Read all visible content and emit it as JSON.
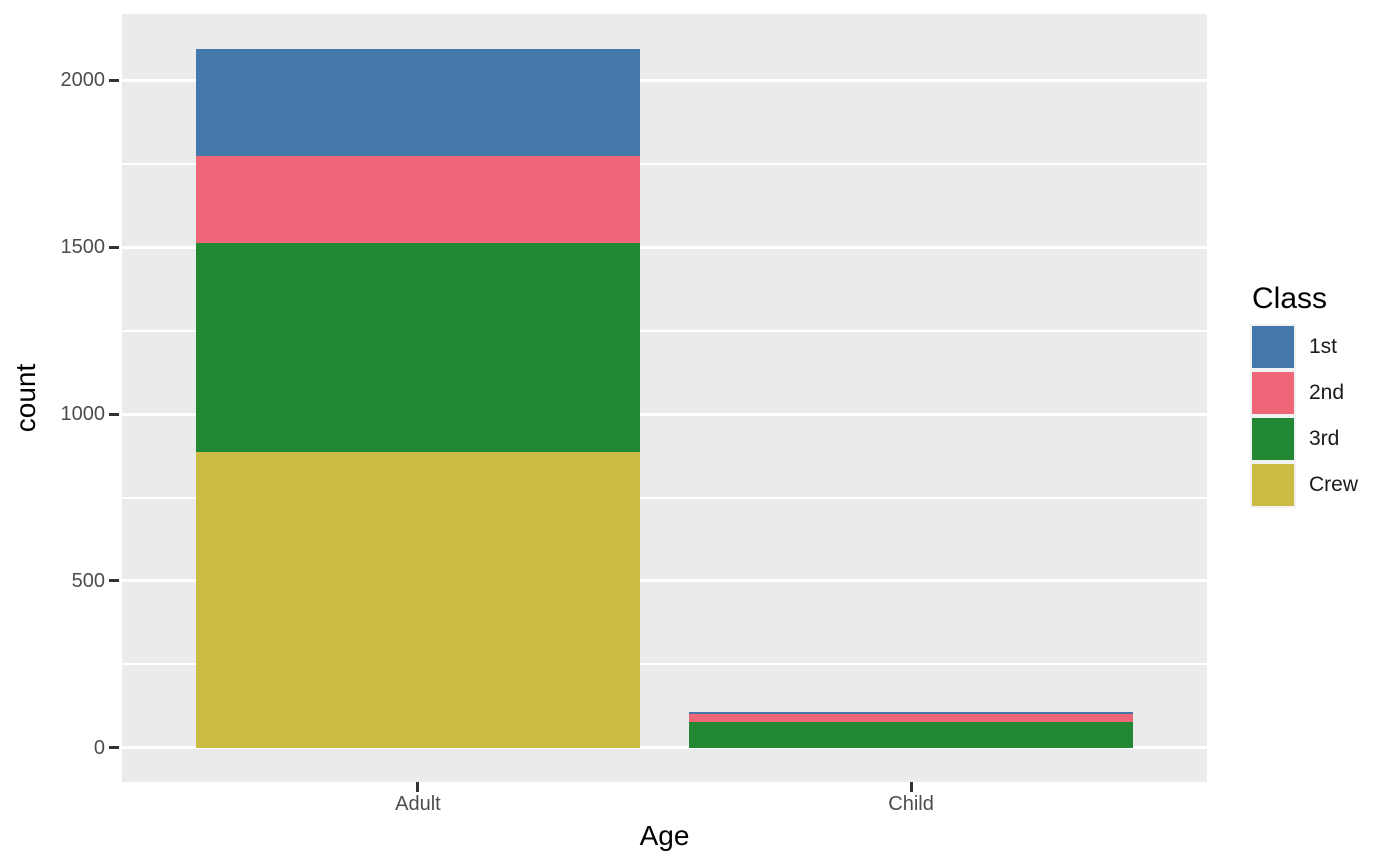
{
  "figure": {
    "background": "#FFFFFF",
    "panel_background": "#EBEBEB",
    "gridline_color": "#FFFFFF",
    "tick_label_color": "#4D4D4D",
    "tick_mark_color": "#333333",
    "axis_title_color": "#000000"
  },
  "chart_data": {
    "type": "bar",
    "stacked": true,
    "orientation": "vertical",
    "title": "",
    "xlabel": "Age",
    "ylabel": "count",
    "categories": [
      "Adult",
      "Child"
    ],
    "series": [
      {
        "name": "1st",
        "color": "#4477AA",
        "values": [
          319,
          6
        ]
      },
      {
        "name": "2nd",
        "color": "#EE6677",
        "values": [
          261,
          24
        ]
      },
      {
        "name": "3rd",
        "color": "#228833",
        "values": [
          627,
          79
        ]
      },
      {
        "name": "Crew",
        "color": "#CCBB44",
        "values": [
          885,
          0
        ]
      }
    ],
    "stack_order": "first_series_on_top",
    "totals": {
      "Adult": 2092,
      "Child": 109
    },
    "y_major_ticks": [
      0,
      500,
      1000,
      1500,
      2000
    ],
    "y_minor_ticks": [
      250,
      750,
      1250,
      1750
    ],
    "ylim": [
      -102,
      2198
    ],
    "grid": true,
    "legend": {
      "title": "Class",
      "position": "right",
      "entries": [
        "1st",
        "2nd",
        "3rd",
        "Crew"
      ]
    }
  }
}
